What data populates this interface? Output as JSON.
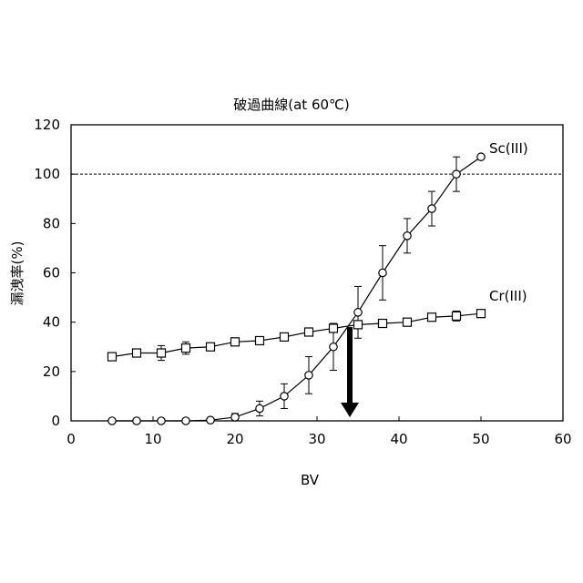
{
  "chart_data": {
    "type": "line",
    "title": "破過曲線(at 60℃)",
    "xlabel": "BV",
    "ylabel": "漏洩率(%)",
    "xlim": [
      0,
      60
    ],
    "ylim": [
      0,
      120
    ],
    "xticks": [
      0,
      10,
      20,
      30,
      40,
      50,
      60
    ],
    "yticks": [
      0,
      20,
      40,
      60,
      80,
      100,
      120
    ],
    "reference_line": {
      "y": 100,
      "style": "dashed"
    },
    "annotation_arrow": {
      "x": 34,
      "y_from": 38,
      "y_to": 0
    },
    "grid": false,
    "series": [
      {
        "name": "Sc(III)",
        "marker": "circle",
        "x": [
          5,
          8,
          11,
          14,
          17,
          20,
          23,
          26,
          29,
          32,
          35,
          38,
          41,
          44,
          47,
          50
        ],
        "y": [
          0,
          0,
          0,
          0,
          0.3,
          1.5,
          5,
          10,
          18.5,
          30,
          44,
          60,
          75,
          86,
          100,
          107
        ],
        "err": [
          0,
          0,
          0,
          0,
          0.5,
          1.5,
          3,
          5,
          7.5,
          9.5,
          10.5,
          11,
          7,
          7,
          7,
          0
        ]
      },
      {
        "name": "Cr(III)",
        "marker": "square",
        "x": [
          5,
          8,
          11,
          14,
          17,
          20,
          23,
          26,
          29,
          32,
          35,
          38,
          41,
          44,
          47,
          50
        ],
        "y": [
          26,
          27.5,
          27.5,
          29.5,
          30,
          32,
          32.5,
          34,
          36,
          37.5,
          39,
          39.5,
          40,
          42,
          42.5,
          43.5
        ],
        "err": [
          0,
          0,
          3,
          2.5,
          0,
          0,
          0,
          0,
          0,
          0,
          0,
          0,
          0,
          1.5,
          2,
          0
        ]
      }
    ]
  }
}
